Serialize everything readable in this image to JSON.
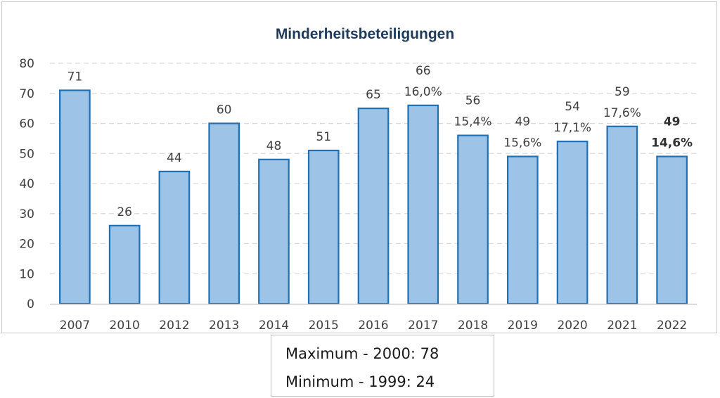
{
  "chart_data": {
    "type": "bar",
    "title": "Minderheitsbeteiligungen",
    "xlabel": "",
    "ylabel": "",
    "ylim": [
      0,
      80
    ],
    "yticks": [
      0,
      10,
      20,
      30,
      40,
      50,
      60,
      70,
      80
    ],
    "grid": true,
    "bar_color": "#9dc3e6",
    "bar_edge_color": "#1f6fb5",
    "categories": [
      "2007",
      "2010",
      "2012",
      "2013",
      "2014",
      "2015",
      "2016",
      "2017",
      "2018",
      "2019",
      "2020",
      "2021",
      "2022"
    ],
    "values": [
      71,
      26,
      44,
      60,
      48,
      51,
      65,
      66,
      56,
      49,
      54,
      59,
      49
    ],
    "value_labels": [
      "71",
      "26",
      "44",
      "60",
      "48",
      "51",
      "65",
      "66",
      "56",
      "49",
      "54",
      "59",
      "49"
    ],
    "percent_labels": [
      "",
      "",
      "",
      "",
      "",
      "",
      "",
      "16,0%",
      "15,4%",
      "15,6%",
      "17,1%",
      "17,6%",
      "14,6%"
    ],
    "highlighted_category": "2022"
  },
  "minmax": {
    "maximum": "Maximum - 2000: 78",
    "minimum": "Minimum  - 1999: 24"
  }
}
